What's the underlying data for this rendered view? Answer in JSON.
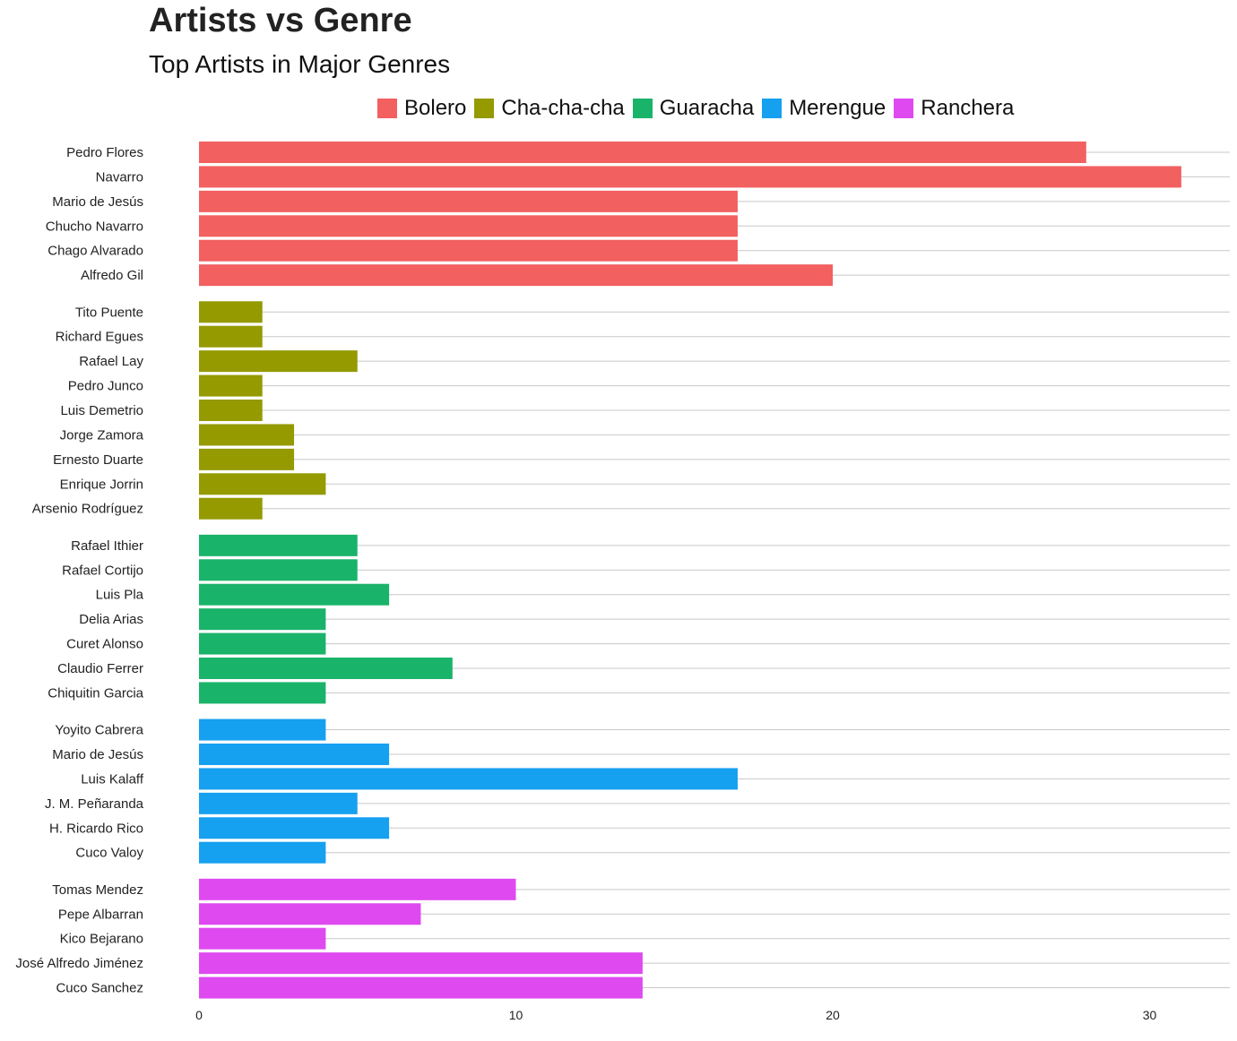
{
  "chart_data": {
    "type": "bar",
    "orientation": "horizontal",
    "title": "Artists vs Genre",
    "subtitle": "Top Artists in Major Genres",
    "xlim": [
      0,
      32.5
    ],
    "x_ticks": [
      0,
      10,
      20,
      30
    ],
    "grid": true,
    "legend_position": "top",
    "groups": [
      {
        "name": "Bolero",
        "color": "#F26060",
        "items": [
          {
            "artist": "Pedro Flores",
            "value": 28
          },
          {
            "artist": "Navarro",
            "value": 31
          },
          {
            "artist": "Mario de Jesús",
            "value": 17
          },
          {
            "artist": "Chucho Navarro",
            "value": 17
          },
          {
            "artist": "Chago Alvarado",
            "value": 17
          },
          {
            "artist": "Alfredo Gil",
            "value": 20
          }
        ]
      },
      {
        "name": "Cha-cha-cha",
        "color": "#949A00",
        "items": [
          {
            "artist": "Tito Puente",
            "value": 2
          },
          {
            "artist": "Richard Egues",
            "value": 2
          },
          {
            "artist": "Rafael Lay",
            "value": 5
          },
          {
            "artist": "Pedro Junco",
            "value": 2
          },
          {
            "artist": "Luis Demetrio",
            "value": 2
          },
          {
            "artist": "Jorge Zamora",
            "value": 3
          },
          {
            "artist": "Ernesto Duarte",
            "value": 3
          },
          {
            "artist": "Enrique Jorrin",
            "value": 4
          },
          {
            "artist": "Arsenio Rodríguez",
            "value": 2
          }
        ]
      },
      {
        "name": "Guaracha",
        "color": "#1AB36A",
        "items": [
          {
            "artist": "Rafael Ithier",
            "value": 5
          },
          {
            "artist": "Rafael Cortijo",
            "value": 5
          },
          {
            "artist": "Luis Pla",
            "value": 6
          },
          {
            "artist": "Delia Arias",
            "value": 4
          },
          {
            "artist": "Curet Alonso",
            "value": 4
          },
          {
            "artist": "Claudio Ferrer",
            "value": 8
          },
          {
            "artist": "Chiquitin Garcia",
            "value": 4
          }
        ]
      },
      {
        "name": "Merengue",
        "color": "#16A0F0",
        "items": [
          {
            "artist": "Yoyito Cabrera",
            "value": 4
          },
          {
            "artist": "Mario de Jesús",
            "value": 6
          },
          {
            "artist": "Luis Kalaff",
            "value": 17
          },
          {
            "artist": "J. M. Peñaranda",
            "value": 5
          },
          {
            "artist": "H. Ricardo Rico",
            "value": 6
          },
          {
            "artist": "Cuco Valoy",
            "value": 4
          }
        ]
      },
      {
        "name": "Ranchera",
        "color": "#DF4AF0",
        "items": [
          {
            "artist": "Tomas Mendez",
            "value": 10
          },
          {
            "artist": "Pepe Albarran",
            "value": 7
          },
          {
            "artist": "Kico Bejarano",
            "value": 4
          },
          {
            "artist": "José Alfredo Jiménez",
            "value": 14
          },
          {
            "artist": "Cuco Sanchez",
            "value": 14
          }
        ]
      }
    ]
  }
}
